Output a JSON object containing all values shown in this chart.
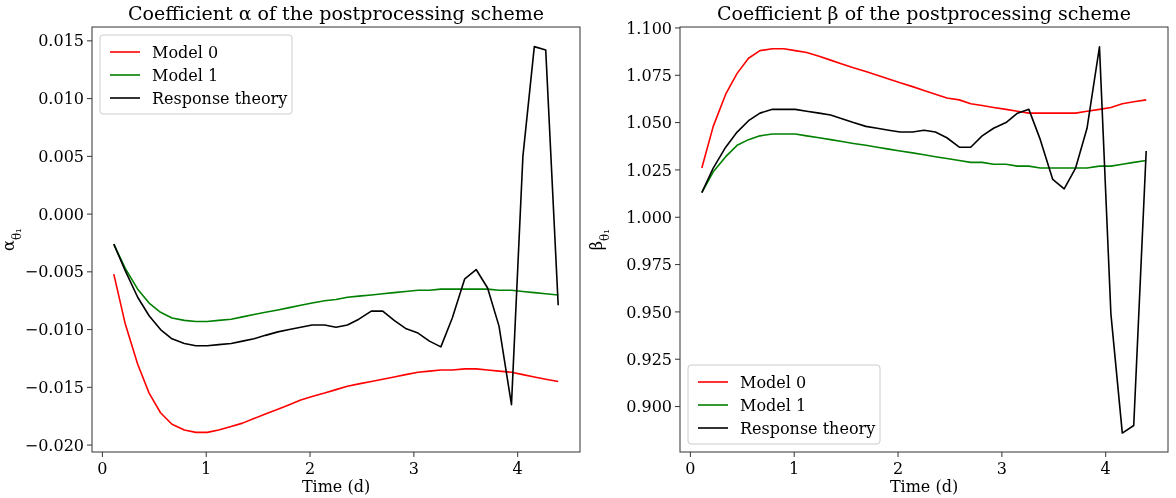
{
  "chart_data": [
    {
      "type": "line",
      "title": "Coefficient α of the postprocessing scheme",
      "xlabel": "Time (d)",
      "ylabel": "α$_{θ₁}$",
      "x": [
        0.11,
        0.22,
        0.34,
        0.45,
        0.56,
        0.67,
        0.79,
        0.9,
        1.01,
        1.12,
        1.24,
        1.35,
        1.46,
        1.57,
        1.69,
        1.8,
        1.91,
        2.02,
        2.14,
        2.25,
        2.36,
        2.47,
        2.59,
        2.7,
        2.81,
        2.92,
        3.04,
        3.15,
        3.26,
        3.37,
        3.49,
        3.6,
        3.71,
        3.82,
        3.94,
        4.05,
        4.16,
        4.27,
        4.39
      ],
      "series": [
        {
          "name": "Model 0",
          "color": "#ff0000",
          "values": [
            -0.0052,
            -0.0095,
            -0.013,
            -0.0155,
            -0.0172,
            -0.0182,
            -0.0187,
            -0.0189,
            -0.0189,
            -0.0187,
            -0.0184,
            -0.0181,
            -0.0177,
            -0.0173,
            -0.0169,
            -0.0165,
            -0.0161,
            -0.0158,
            -0.0155,
            -0.0152,
            -0.0149,
            -0.0147,
            -0.0145,
            -0.0143,
            -0.0141,
            -0.0139,
            -0.0137,
            -0.0136,
            -0.0135,
            -0.0135,
            -0.0134,
            -0.0134,
            -0.0135,
            -0.0136,
            -0.0137,
            -0.0139,
            -0.0141,
            -0.0143,
            -0.0145
          ]
        },
        {
          "name": "Model 1",
          "color": "#008000",
          "values": [
            -0.0026,
            -0.0047,
            -0.0065,
            -0.0077,
            -0.0085,
            -0.009,
            -0.0092,
            -0.0093,
            -0.0093,
            -0.0092,
            -0.0091,
            -0.0089,
            -0.0087,
            -0.0085,
            -0.0083,
            -0.0081,
            -0.0079,
            -0.0077,
            -0.0075,
            -0.0074,
            -0.0072,
            -0.0071,
            -0.007,
            -0.0069,
            -0.0068,
            -0.0067,
            -0.0066,
            -0.0066,
            -0.0065,
            -0.0065,
            -0.0065,
            -0.0065,
            -0.0065,
            -0.0066,
            -0.0066,
            -0.0067,
            -0.0068,
            -0.0069,
            -0.007
          ]
        },
        {
          "name": "Response theory",
          "color": "#000000",
          "values": [
            -0.0026,
            -0.0049,
            -0.0072,
            -0.0088,
            -0.01,
            -0.0108,
            -0.0112,
            -0.0114,
            -0.0114,
            -0.0113,
            -0.0112,
            -0.011,
            -0.0108,
            -0.0105,
            -0.0102,
            -0.01,
            -0.0098,
            -0.0096,
            -0.0096,
            -0.0098,
            -0.0096,
            -0.0091,
            -0.0084,
            -0.0084,
            -0.0092,
            -0.0099,
            -0.0103,
            -0.011,
            -0.0115,
            -0.009,
            -0.0056,
            -0.0048,
            -0.0064,
            -0.0097,
            -0.0165,
            0.005,
            0.0145,
            0.0142,
            -0.0079
          ]
        }
      ],
      "xlim": [
        -0.1,
        4.6
      ],
      "xticks": [
        0,
        1,
        2,
        3,
        4
      ],
      "ylim": [
        -0.0206,
        0.0162
      ],
      "yticks": [
        {
          "value": -0.02,
          "label": "−0.020"
        },
        {
          "value": -0.015,
          "label": "−0.015"
        },
        {
          "value": -0.01,
          "label": "−0.010"
        },
        {
          "value": -0.005,
          "label": "−0.005"
        },
        {
          "value": 0,
          "label": "0.000"
        },
        {
          "value": 0.005,
          "label": "0.005"
        },
        {
          "value": 0.01,
          "label": "0.010"
        },
        {
          "value": 0.015,
          "label": "0.015"
        }
      ],
      "legend": "top left",
      "line_style": "solid"
    },
    {
      "type": "line",
      "title": "Coefficient β of the postprocessing scheme",
      "xlabel": "Time (d)",
      "ylabel": "β$_{θ₁}$",
      "x": [
        0.11,
        0.22,
        0.34,
        0.45,
        0.56,
        0.67,
        0.79,
        0.9,
        1.01,
        1.12,
        1.24,
        1.35,
        1.46,
        1.57,
        1.69,
        1.8,
        1.91,
        2.02,
        2.14,
        2.25,
        2.36,
        2.47,
        2.59,
        2.7,
        2.81,
        2.92,
        3.04,
        3.15,
        3.26,
        3.37,
        3.49,
        3.6,
        3.71,
        3.82,
        3.94,
        4.05,
        4.16,
        4.27,
        4.39
      ],
      "series": [
        {
          "name": "Model 0",
          "color": "#ff0000",
          "values": [
            1.026,
            1.048,
            1.065,
            1.076,
            1.084,
            1.088,
            1.089,
            1.089,
            1.088,
            1.087,
            1.085,
            1.083,
            1.081,
            1.079,
            1.077,
            1.075,
            1.073,
            1.071,
            1.069,
            1.067,
            1.065,
            1.063,
            1.062,
            1.06,
            1.059,
            1.058,
            1.057,
            1.056,
            1.055,
            1.055,
            1.055,
            1.055,
            1.055,
            1.056,
            1.057,
            1.058,
            1.06,
            1.061,
            1.062
          ]
        },
        {
          "name": "Model 1",
          "color": "#008000",
          "values": [
            1.013,
            1.024,
            1.032,
            1.038,
            1.041,
            1.043,
            1.044,
            1.044,
            1.044,
            1.043,
            1.042,
            1.041,
            1.04,
            1.039,
            1.038,
            1.037,
            1.036,
            1.035,
            1.034,
            1.033,
            1.032,
            1.031,
            1.03,
            1.029,
            1.029,
            1.028,
            1.028,
            1.027,
            1.027,
            1.026,
            1.026,
            1.026,
            1.026,
            1.026,
            1.027,
            1.027,
            1.028,
            1.029,
            1.03
          ]
        },
        {
          "name": "Response theory",
          "color": "#000000",
          "values": [
            1.013,
            1.026,
            1.037,
            1.045,
            1.051,
            1.055,
            1.057,
            1.057,
            1.057,
            1.056,
            1.055,
            1.054,
            1.052,
            1.05,
            1.048,
            1.047,
            1.046,
            1.045,
            1.045,
            1.046,
            1.045,
            1.042,
            1.037,
            1.037,
            1.043,
            1.047,
            1.05,
            1.055,
            1.057,
            1.041,
            1.02,
            1.015,
            1.026,
            1.047,
            1.09,
            0.949,
            0.886,
            0.89,
            1.035
          ]
        }
      ],
      "xlim": [
        -0.1,
        4.6
      ],
      "xticks": [
        0,
        1,
        2,
        3,
        4
      ],
      "ylim": [
        0.876,
        1.1005
      ],
      "yticks": [
        {
          "value": 0.9,
          "label": "0.900"
        },
        {
          "value": 0.925,
          "label": "0.925"
        },
        {
          "value": 0.95,
          "label": "0.950"
        },
        {
          "value": 0.975,
          "label": "0.975"
        },
        {
          "value": 1,
          "label": "1.000"
        },
        {
          "value": 1.025,
          "label": "1.025"
        },
        {
          "value": 1.05,
          "label": "1.050"
        },
        {
          "value": 1.075,
          "label": "1.075"
        },
        {
          "value": 1.1,
          "label": "1.100"
        }
      ],
      "legend": "bottom left",
      "line_style": "solid"
    }
  ]
}
